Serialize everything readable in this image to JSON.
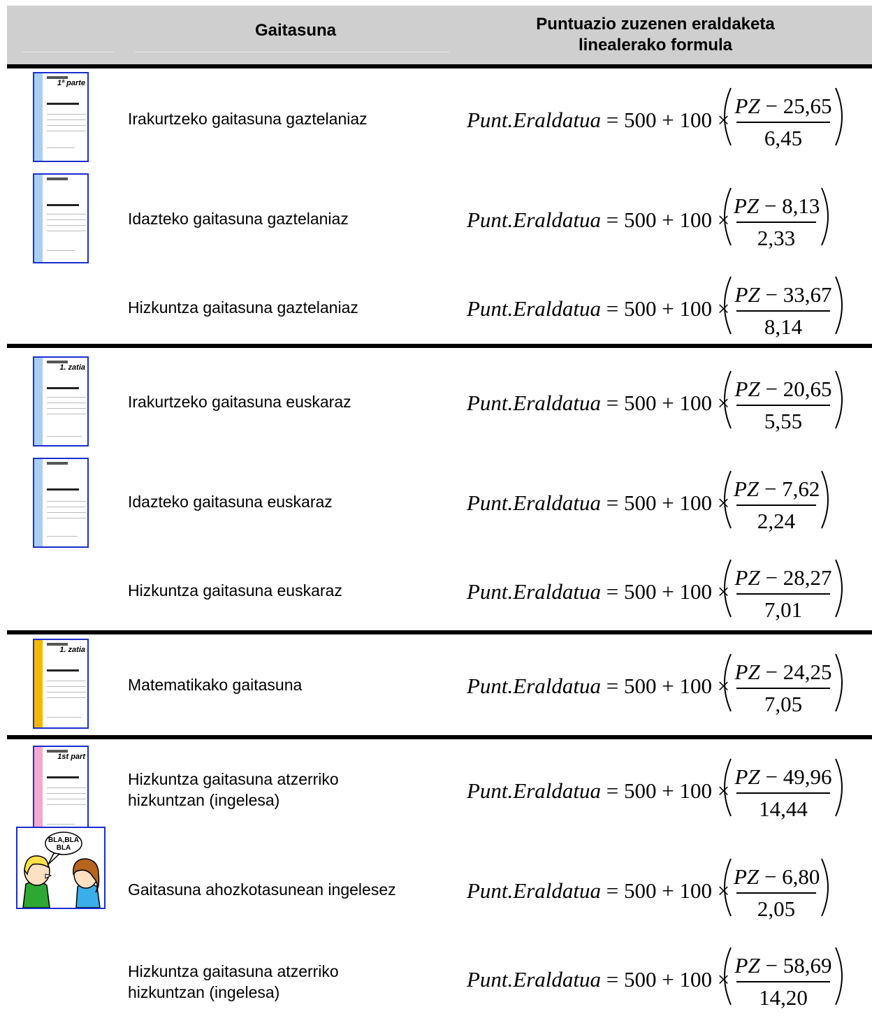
{
  "header": {
    "col_skill": "Gaitasuna",
    "col_formula_line1": "Puntuazio zuzenen eraldaketa",
    "col_formula_line2": "linealerako formula"
  },
  "formula_common": {
    "lhs_var": "Punt.Eraldatua",
    "lhs_rest": " = 500 + 100 ×",
    "num_var": "PZ",
    "minus": " − "
  },
  "thumbnail_titles": {
    "es_part1": "1ª parte",
    "eu_part1": "1. zatia",
    "en_part1": "1st part"
  },
  "speech_bubble": "BLA,BLA BLA",
  "rows": [
    {
      "label": "Irakurtzeko gaitasuna gaztelaniaz",
      "mean": "25,65",
      "sd": "6,45"
    },
    {
      "label": "Idazteko gaitasuna gaztelaniaz",
      "mean": "8,13",
      "sd": "2,33"
    },
    {
      "label": "Hizkuntza gaitasuna gaztelaniaz",
      "mean": "33,67",
      "sd": "8,14"
    },
    {
      "label": "Irakurtzeko gaitasuna euskaraz",
      "mean": "20,65",
      "sd": "5,55"
    },
    {
      "label": "Idazteko gaitasuna euskaraz",
      "mean": "7,62",
      "sd": "2,24"
    },
    {
      "label": "Hizkuntza gaitasuna euskaraz",
      "mean": "28,27",
      "sd": "7,01"
    },
    {
      "label": "Matematikako gaitasuna",
      "mean": "24,25",
      "sd": "7,05"
    },
    {
      "label_line1": "Hizkuntza gaitasuna atzerriko",
      "label_line2": "hizkuntzan (ingelesa)",
      "mean": "49,96",
      "sd": "14,44"
    },
    {
      "label": "Gaitasuna ahozkotasunean ingelesez",
      "mean": "6,80",
      "sd": "2,05"
    },
    {
      "label_line1": "Hizkuntza gaitasuna atzerriko",
      "label_line2": "hizkuntzan (ingelesa)",
      "mean": "58,69",
      "sd": "14,20"
    }
  ],
  "colors": {
    "spine_blue": "#a9cff5",
    "spine_yellow": "#f5b800",
    "spine_pink": "#f7a8cf",
    "frame_blue": "#1a2fd0",
    "header_gray": "#cfcfcf"
  }
}
